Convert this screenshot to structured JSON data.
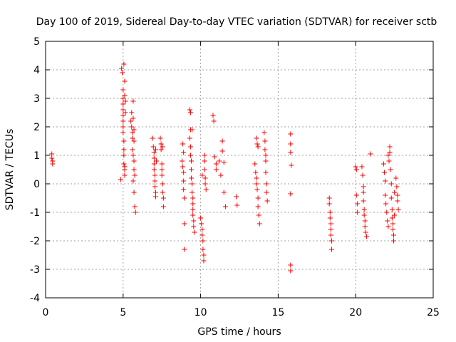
{
  "chart_data": {
    "type": "scatter",
    "title": "Day 100 of 2019, Sidereal Day-to-day VTEC variation (SDTVAR) for receiver sctb",
    "xlabel": "GPS time / hours",
    "ylabel": "SDTVAR / TECUs",
    "xlim": [
      0,
      25
    ],
    "ylim": [
      -4,
      5
    ],
    "xticks": [
      "0",
      "5",
      "10",
      "15",
      "20",
      "25"
    ],
    "yticks": [
      "-4",
      "-3",
      "-2",
      "-1",
      "0",
      "1",
      "2",
      "3",
      "4",
      "5"
    ],
    "grid": true,
    "marker": "+",
    "color": "#ff0000",
    "series": [
      {
        "name": "SDTVAR",
        "points": [
          [
            0.4,
            1.05
          ],
          [
            0.4,
            0.9
          ],
          [
            0.45,
            0.8
          ],
          [
            0.45,
            0.7
          ],
          [
            4.85,
            0.15
          ],
          [
            4.9,
            4.05
          ],
          [
            4.95,
            3.9
          ],
          [
            5.0,
            3.3
          ],
          [
            5.0,
            3.0
          ],
          [
            5.0,
            2.8
          ],
          [
            5.0,
            2.6
          ],
          [
            5.0,
            2.4
          ],
          [
            5.0,
            2.2
          ],
          [
            5.0,
            2.0
          ],
          [
            5.0,
            1.8
          ],
          [
            5.05,
            1.5
          ],
          [
            5.05,
            1.2
          ],
          [
            5.05,
            1.0
          ],
          [
            5.05,
            0.7
          ],
          [
            5.1,
            0.5
          ],
          [
            5.1,
            0.3
          ],
          [
            5.05,
            4.2
          ],
          [
            5.1,
            3.6
          ],
          [
            5.1,
            3.1
          ],
          [
            5.15,
            2.9
          ],
          [
            5.15,
            2.5
          ],
          [
            5.1,
            0.6
          ],
          [
            5.5,
            2.2
          ],
          [
            5.55,
            2.5
          ],
          [
            5.55,
            2.0
          ],
          [
            5.6,
            1.8
          ],
          [
            5.6,
            1.6
          ],
          [
            5.6,
            1.2
          ],
          [
            5.65,
            2.9
          ],
          [
            5.65,
            2.3
          ],
          [
            5.65,
            1.0
          ],
          [
            5.7,
            1.9
          ],
          [
            5.7,
            1.5
          ],
          [
            5.7,
            0.8
          ],
          [
            5.7,
            0.5
          ],
          [
            5.65,
            0.1
          ],
          [
            5.7,
            -0.3
          ],
          [
            5.75,
            -0.8
          ],
          [
            5.8,
            -1.0
          ],
          [
            5.75,
            0.3
          ],
          [
            6.9,
            1.6
          ],
          [
            6.95,
            1.3
          ],
          [
            7.0,
            1.1
          ],
          [
            7.0,
            0.9
          ],
          [
            7.0,
            0.7
          ],
          [
            7.0,
            0.5
          ],
          [
            7.05,
            0.3
          ],
          [
            7.05,
            0.1
          ],
          [
            7.05,
            -0.1
          ],
          [
            7.1,
            -0.3
          ],
          [
            7.1,
            -0.45
          ],
          [
            7.1,
            1.2
          ],
          [
            7.15,
            0.8
          ],
          [
            7.4,
            1.6
          ],
          [
            7.45,
            1.4
          ],
          [
            7.45,
            1.2
          ],
          [
            7.5,
            0.7
          ],
          [
            7.5,
            0.5
          ],
          [
            7.5,
            0.3
          ],
          [
            7.55,
            0.0
          ],
          [
            7.55,
            -0.3
          ],
          [
            7.6,
            -0.5
          ],
          [
            7.6,
            -0.8
          ],
          [
            7.55,
            1.3
          ],
          [
            8.8,
            0.8
          ],
          [
            8.85,
            0.6
          ],
          [
            8.9,
            0.4
          ],
          [
            8.9,
            0.1
          ],
          [
            8.9,
            -0.2
          ],
          [
            8.95,
            -0.5
          ],
          [
            8.95,
            -1.4
          ],
          [
            8.95,
            -2.3
          ],
          [
            8.85,
            1.4
          ],
          [
            8.9,
            1.1
          ],
          [
            9.3,
            1.6
          ],
          [
            9.35,
            1.3
          ],
          [
            9.35,
            1.0
          ],
          [
            9.4,
            0.8
          ],
          [
            9.4,
            0.5
          ],
          [
            9.4,
            0.2
          ],
          [
            9.45,
            0.0
          ],
          [
            9.45,
            -0.3
          ],
          [
            9.5,
            -0.5
          ],
          [
            9.5,
            -0.7
          ],
          [
            9.5,
            -0.9
          ],
          [
            9.5,
            -1.1
          ],
          [
            9.55,
            -1.3
          ],
          [
            9.55,
            -1.5
          ],
          [
            9.6,
            -1.7
          ],
          [
            9.3,
            2.6
          ],
          [
            9.35,
            2.5
          ],
          [
            9.35,
            1.9
          ],
          [
            9.45,
            1.9
          ],
          [
            10.0,
            -1.2
          ],
          [
            10.05,
            -1.4
          ],
          [
            10.1,
            -1.6
          ],
          [
            10.1,
            -1.8
          ],
          [
            10.15,
            -2.0
          ],
          [
            10.15,
            -2.3
          ],
          [
            10.2,
            -2.5
          ],
          [
            10.2,
            -2.7
          ],
          [
            10.25,
            1.0
          ],
          [
            10.25,
            0.8
          ],
          [
            10.25,
            0.5
          ],
          [
            10.3,
            0.2
          ],
          [
            10.3,
            0.0
          ],
          [
            10.1,
            0.3
          ],
          [
            10.35,
            -0.2
          ],
          [
            10.8,
            2.4
          ],
          [
            10.85,
            2.2
          ],
          [
            10.9,
            0.95
          ],
          [
            11.0,
            0.7
          ],
          [
            11.0,
            0.5
          ],
          [
            11.2,
            0.8
          ],
          [
            11.3,
            0.3
          ],
          [
            11.4,
            1.5
          ],
          [
            11.4,
            1.15
          ],
          [
            11.5,
            0.75
          ],
          [
            11.5,
            -0.3
          ],
          [
            11.6,
            -0.8
          ],
          [
            12.3,
            -0.45
          ],
          [
            12.35,
            -0.75
          ],
          [
            13.5,
            0.7
          ],
          [
            13.55,
            0.4
          ],
          [
            13.6,
            0.2
          ],
          [
            13.6,
            0.0
          ],
          [
            13.65,
            -0.2
          ],
          [
            13.7,
            -0.5
          ],
          [
            13.7,
            -0.8
          ],
          [
            13.75,
            -1.1
          ],
          [
            13.8,
            -1.4
          ],
          [
            13.6,
            1.6
          ],
          [
            13.65,
            1.4
          ],
          [
            13.7,
            1.3
          ],
          [
            14.1,
            1.8
          ],
          [
            14.15,
            1.5
          ],
          [
            14.15,
            1.2
          ],
          [
            14.2,
            1.0
          ],
          [
            14.2,
            0.8
          ],
          [
            14.2,
            0.4
          ],
          [
            14.25,
            0.0
          ],
          [
            14.25,
            -0.3
          ],
          [
            14.3,
            -0.6
          ],
          [
            15.8,
            1.75
          ],
          [
            15.8,
            1.4
          ],
          [
            15.8,
            1.1
          ],
          [
            15.85,
            0.65
          ],
          [
            15.8,
            -0.35
          ],
          [
            15.8,
            -2.85
          ],
          [
            15.8,
            -3.05
          ],
          [
            18.3,
            -0.5
          ],
          [
            18.3,
            -0.7
          ],
          [
            18.35,
            -1.0
          ],
          [
            18.35,
            -1.2
          ],
          [
            18.4,
            -1.4
          ],
          [
            18.4,
            -1.6
          ],
          [
            18.4,
            -1.8
          ],
          [
            18.45,
            -2.0
          ],
          [
            18.45,
            -2.3
          ],
          [
            20.0,
            0.6
          ],
          [
            20.05,
            0.5
          ],
          [
            20.05,
            -0.4
          ],
          [
            20.1,
            -0.7
          ],
          [
            20.1,
            -1.0
          ],
          [
            20.4,
            0.6
          ],
          [
            20.45,
            0.3
          ],
          [
            20.5,
            -0.1
          ],
          [
            20.5,
            -0.3
          ],
          [
            20.5,
            -0.6
          ],
          [
            20.55,
            -0.9
          ],
          [
            20.55,
            -1.1
          ],
          [
            20.6,
            -1.3
          ],
          [
            20.6,
            -1.5
          ],
          [
            20.65,
            -1.7
          ],
          [
            20.7,
            -1.85
          ],
          [
            20.95,
            1.05
          ],
          [
            21.8,
            0.7
          ],
          [
            21.85,
            0.4
          ],
          [
            21.9,
            0.1
          ],
          [
            21.9,
            -0.4
          ],
          [
            21.95,
            -0.7
          ],
          [
            22.0,
            -1.0
          ],
          [
            22.05,
            -1.3
          ],
          [
            22.1,
            -1.5
          ],
          [
            22.1,
            1.0
          ],
          [
            22.15,
            0.8
          ],
          [
            22.2,
            1.3
          ],
          [
            22.2,
            1.1
          ],
          [
            22.25,
            0.5
          ],
          [
            22.3,
            0.0
          ],
          [
            22.3,
            -0.5
          ],
          [
            22.35,
            -0.9
          ],
          [
            22.35,
            -1.2
          ],
          [
            22.4,
            -1.4
          ],
          [
            22.4,
            -1.6
          ],
          [
            22.45,
            -1.8
          ],
          [
            22.45,
            -2.0
          ],
          [
            22.5,
            -0.3
          ],
          [
            22.6,
            0.2
          ],
          [
            22.65,
            -0.1
          ],
          [
            22.7,
            -0.4
          ],
          [
            22.7,
            -0.6
          ],
          [
            22.75,
            -0.9
          ],
          [
            22.5,
            -1.1
          ]
        ]
      }
    ]
  }
}
